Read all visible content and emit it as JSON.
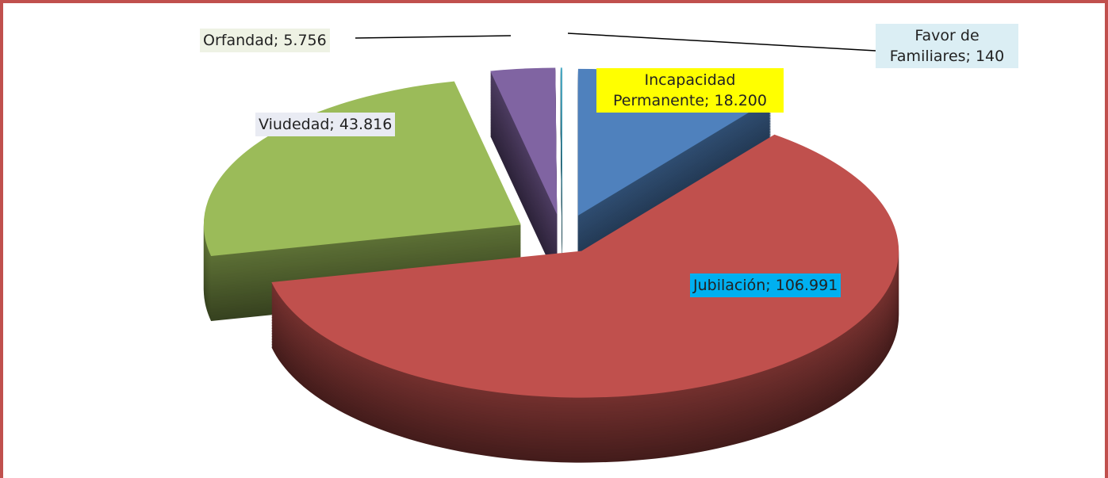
{
  "chart_data": {
    "type": "pie3d",
    "categories": [
      "Incapacidad Permanente",
      "Jubilación",
      "Viudedad",
      "Orfandad",
      "Favor de Familiares"
    ],
    "values": [
      18200,
      106991,
      43816,
      5756,
      140
    ],
    "value_labels": [
      "Incapacidad Permanente; 18.200",
      "Jubilación; 106.991",
      "Viudedad; 43.816",
      "Orfandad; 5.756",
      "Favor de Familiares; 140"
    ],
    "colors": [
      "#4f81bd",
      "#c0504d",
      "#9bbb59",
      "#8064a2",
      "#4bacc6"
    ]
  }
}
